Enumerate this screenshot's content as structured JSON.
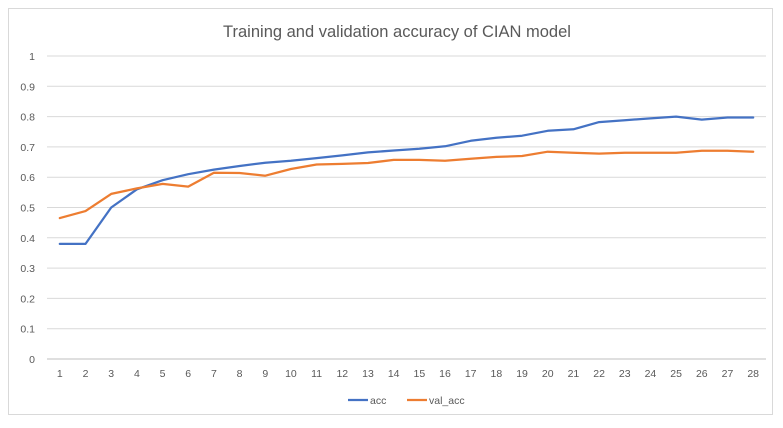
{
  "chart_data": {
    "type": "line",
    "title": "Training and validation accuracy of CIAN model",
    "xlabel": "",
    "ylabel": "",
    "categories": [
      1,
      2,
      3,
      4,
      5,
      6,
      7,
      8,
      9,
      10,
      11,
      12,
      13,
      14,
      15,
      16,
      17,
      18,
      19,
      20,
      21,
      22,
      23,
      24,
      25,
      26,
      27,
      28
    ],
    "x_tick_labels": [
      "1",
      "2",
      "3",
      "4",
      "5",
      "6",
      "7",
      "8",
      "9",
      "10",
      "11",
      "12",
      "13",
      "14",
      "15",
      "16",
      "17",
      "18",
      "19",
      "20",
      "21",
      "22",
      "23",
      "24",
      "25",
      "26",
      "27",
      "28"
    ],
    "ylim": [
      0,
      1
    ],
    "y_tick_labels": [
      "0",
      "0.1",
      "0.2",
      "0.3",
      "0.4",
      "0.5",
      "0.6",
      "0.7",
      "0.8",
      "0.9",
      "1"
    ],
    "grid": true,
    "legend_position": "bottom",
    "series": [
      {
        "name": "acc",
        "color": "#4472c4",
        "values": [
          0.38,
          0.38,
          0.5,
          0.56,
          0.59,
          0.61,
          0.625,
          0.637,
          0.648,
          0.654,
          0.663,
          0.672,
          0.682,
          0.688,
          0.694,
          0.702,
          0.72,
          0.73,
          0.737,
          0.753,
          0.758,
          0.782,
          0.788,
          0.794,
          0.8,
          0.79,
          0.797,
          0.797
        ]
      },
      {
        "name": "val_acc",
        "color": "#ed7d31",
        "values": [
          0.465,
          0.488,
          0.545,
          0.563,
          0.578,
          0.569,
          0.615,
          0.614,
          0.605,
          0.627,
          0.642,
          0.644,
          0.647,
          0.657,
          0.657,
          0.654,
          0.661,
          0.667,
          0.67,
          0.684,
          0.681,
          0.678,
          0.681,
          0.681,
          0.681,
          0.687,
          0.687,
          0.684
        ]
      }
    ]
  }
}
